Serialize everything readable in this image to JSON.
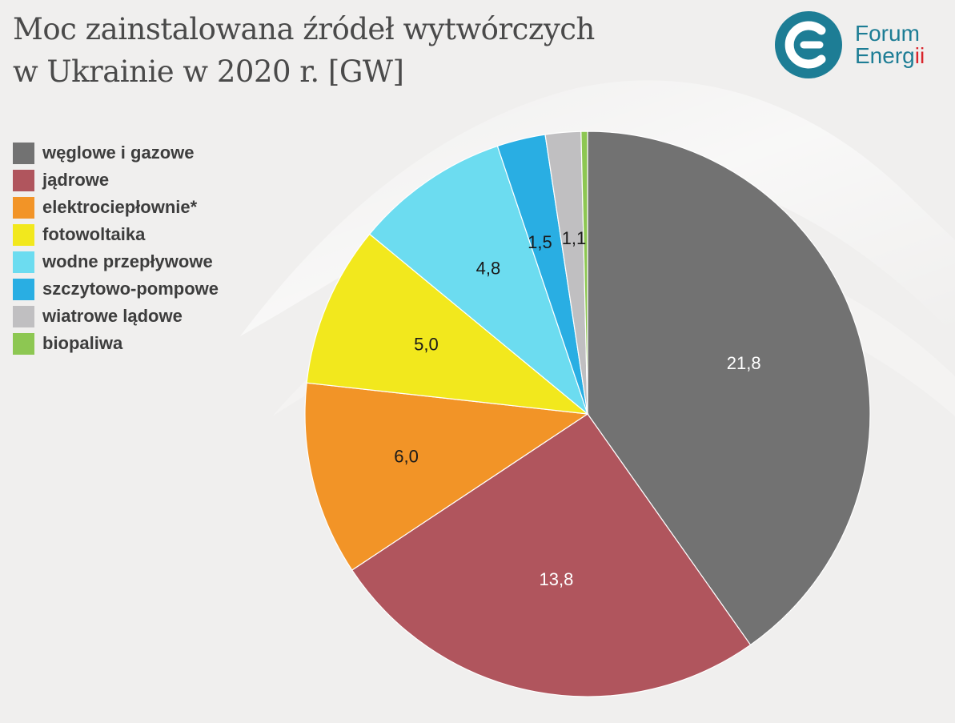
{
  "title": {
    "line1": "Moc zainstalowana źródeł wytwórczych",
    "line2": "w Ukrainie w 2020 r. [GW]"
  },
  "logo": {
    "line1": "Forum",
    "line2_main": "Energ",
    "line2_accent": "ii",
    "icon": "forum-energii-logo-icon",
    "color": "#1d7d95",
    "accent_color": "#d9242b"
  },
  "chart_data": {
    "type": "pie",
    "title": "Moc zainstalowana źródeł wytwórczych w Ukrainie w 2020 r. [GW]",
    "legend_position": "left",
    "slices": [
      {
        "label": "węglowe i gazowe",
        "value": 21.8,
        "display": "21,8",
        "color": "#727272",
        "label_color": "#ffffff"
      },
      {
        "label": "jądrowe",
        "value": 13.8,
        "display": "13,8",
        "color": "#b0555d",
        "label_color": "#ffffff"
      },
      {
        "label": "elektrociepłownie*",
        "value": 6.0,
        "display": "6,0",
        "color": "#f29427",
        "label_color": "#1a1a1a"
      },
      {
        "label": "fotowoltaika",
        "value": 5.0,
        "display": "5,0",
        "color": "#f2e81d",
        "label_color": "#1a1a1a"
      },
      {
        "label": "wodne przepływowe",
        "value": 4.8,
        "display": "4,8",
        "color": "#6cdcf0",
        "label_color": "#1a1a1a"
      },
      {
        "label": "szczytowo-pompowe",
        "value": 1.5,
        "display": "1,5",
        "color": "#29aee3",
        "label_color": "#1a1a1a"
      },
      {
        "label": "wiatrowe lądowe",
        "value": 1.1,
        "display": "1,1",
        "color": "#c0bfc1",
        "label_color": "#1a1a1a"
      },
      {
        "label": "biopaliwa",
        "value": 0.2,
        "display": "",
        "color": "#8dc752",
        "label_color": "#1a1a1a"
      }
    ]
  }
}
